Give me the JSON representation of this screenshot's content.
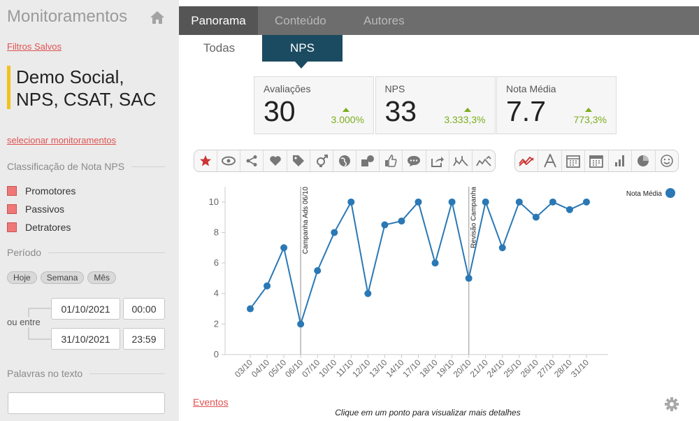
{
  "sidebar": {
    "title": "Monitoramentos",
    "saved_filters": "Filtros Salvos",
    "monitor": "Demo Social, NPS, CSAT, SAC",
    "select_link": "selecionar monitoramentos",
    "classification": {
      "title": "Classificação de Nota NPS",
      "options": [
        "Promotores",
        "Passivos",
        "Detratores"
      ]
    },
    "period": {
      "title": "Período",
      "buttons": [
        "Hoje",
        "Semana",
        "Mês"
      ],
      "between": "ou entre",
      "start_date": "01/10/2021",
      "start_time": "00:00",
      "end_date": "31/10/2021",
      "end_time": "23:59"
    },
    "words": {
      "title": "Palavras no texto"
    }
  },
  "tabs": [
    "Panorama",
    "Conteúdo",
    "Autores"
  ],
  "subtabs": [
    "Todas",
    "NPS"
  ],
  "kpis": [
    {
      "label": "Avaliações",
      "value": 30,
      "change": "3.000%"
    },
    {
      "label": "NPS",
      "value": 33,
      "change": "3.333,3%"
    },
    {
      "label": "Nota Média",
      "value": 7.7,
      "change": "773,3%"
    }
  ],
  "chart_data": {
    "type": "line",
    "categories": [
      "03/10",
      "04/10",
      "05/10",
      "06/10",
      "07/10",
      "10/10",
      "11/10",
      "12/10",
      "13/10",
      "14/10",
      "17/10",
      "18/10",
      "19/10",
      "20/10",
      "21/10",
      "24/10",
      "25/10",
      "26/10",
      "27/10",
      "28/10",
      "31/10"
    ],
    "series": [
      {
        "name": "Nota Média",
        "color": "#2a78b5",
        "values": [
          3,
          4.5,
          7,
          2,
          5.5,
          8,
          10,
          4,
          8.5,
          8.75,
          10,
          6,
          10,
          5,
          10,
          7,
          10,
          9,
          10,
          9.5,
          10
        ]
      }
    ],
    "ylim": [
      0,
      11
    ],
    "yticks": [
      0,
      2,
      4,
      6,
      8,
      10
    ],
    "legend": "top-right",
    "annotations": [
      {
        "text": "Campanha Ads 06/10",
        "at": "06/10"
      },
      {
        "text": "Revisão Campanha",
        "at": "20/10"
      }
    ]
  },
  "footer": {
    "events_link": "Eventos",
    "hint": "Clique em um ponto para visualizar mais detalhes"
  }
}
